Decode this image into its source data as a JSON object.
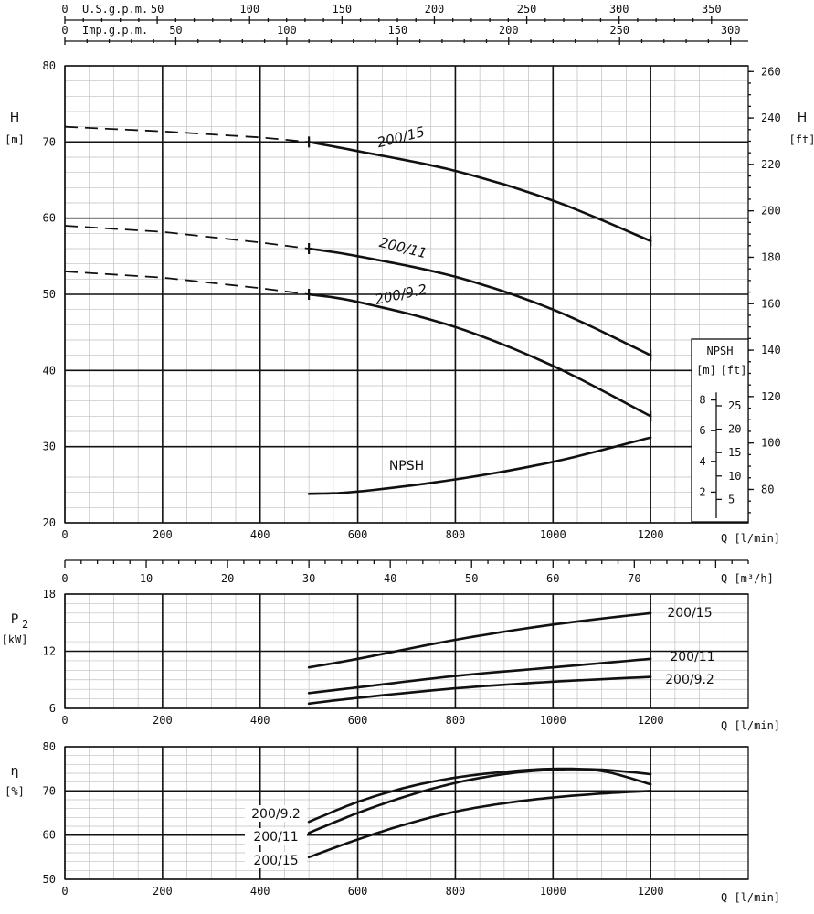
{
  "chart_data": [
    {
      "type": "line",
      "name": "head",
      "xlabel": "Q [l/min]",
      "ylabel_left": "H",
      "ylabel_left_unit": "[m]",
      "ylabel_right": "H",
      "ylabel_right_unit": "[ft]",
      "xlim": [
        0,
        1400
      ],
      "ylim": [
        20,
        80
      ],
      "x_ticks": [
        0,
        200,
        400,
        600,
        800,
        1000,
        1200
      ],
      "y_ticks": [
        20,
        30,
        40,
        50,
        60,
        70,
        80
      ],
      "right_ticks_ft": [
        80,
        100,
        120,
        140,
        160,
        180,
        200,
        220,
        240,
        260
      ],
      "top_axes": [
        {
          "label": "U.S.g.p.m.",
          "first": "0",
          "ticks": [
            "50",
            "100",
            "150",
            "200",
            "250",
            "300",
            "350"
          ],
          "values": [
            50,
            100,
            150,
            200,
            250,
            300,
            350
          ],
          "l_per_min": 3.785
        },
        {
          "label": "Imp.g.p.m.",
          "first": "0",
          "ticks": [
            "50",
            "100",
            "150",
            "200",
            "250",
            "300"
          ],
          "values": [
            50,
            100,
            150,
            200,
            250,
            300
          ],
          "l_per_min": 4.546
        }
      ],
      "series": [
        {
          "name": "200/15",
          "dashed_x": [
            0,
            200,
            400,
            500
          ],
          "dashed_y": [
            72,
            71.4,
            70.6,
            70
          ],
          "x": [
            500,
            600,
            800,
            1000,
            1200
          ],
          "y": [
            70,
            68.8,
            66.2,
            62.3,
            57
          ]
        },
        {
          "name": "200/11",
          "dashed_x": [
            0,
            200,
            400,
            500
          ],
          "dashed_y": [
            59,
            58.2,
            56.8,
            56
          ],
          "x": [
            500,
            600,
            800,
            1000,
            1200
          ],
          "y": [
            56,
            55,
            52.3,
            48,
            42
          ]
        },
        {
          "name": "200/9.2",
          "dashed_x": [
            0,
            200,
            400,
            500
          ],
          "dashed_y": [
            53,
            52.2,
            50.8,
            50
          ],
          "x": [
            500,
            600,
            800,
            1000,
            1200
          ],
          "y": [
            50,
            49,
            45.7,
            40.6,
            34
          ]
        }
      ],
      "npsh": {
        "name": "NPSH",
        "x": [
          500,
          600,
          800,
          1000,
          1200
        ],
        "y": [
          23.8,
          24.1,
          25.7,
          28,
          31.2
        ],
        "box_title": "NPSH",
        "box_units": [
          "[m]",
          "[ft]"
        ],
        "m_ticks": [
          "8",
          "6",
          "4",
          "2"
        ],
        "m_values": [
          8,
          6,
          4,
          2
        ],
        "ft_ticks": [
          "25",
          "20",
          "15",
          "10",
          "5"
        ],
        "ft_values": [
          25,
          20,
          15,
          10,
          5
        ]
      },
      "m3h_axis": {
        "label": "Q [m³/h]",
        "ticks": [
          "0",
          "10",
          "20",
          "30",
          "40",
          "50",
          "60",
          "70"
        ],
        "values": [
          0,
          10,
          20,
          30,
          40,
          50,
          60,
          70
        ]
      }
    },
    {
      "type": "line",
      "name": "power",
      "ylabel": "P",
      "ylabel_sub": "2",
      "yunit": "[kW]",
      "xlabel": "Q [l/min]",
      "xlim": [
        0,
        1400
      ],
      "ylim": [
        6,
        18
      ],
      "x_ticks": [
        0,
        200,
        400,
        600,
        800,
        1000,
        1200
      ],
      "y_ticks": [
        6,
        12,
        18
      ],
      "series": [
        {
          "name": "200/15",
          "x": [
            500,
            600,
            800,
            1000,
            1200
          ],
          "y": [
            10.3,
            11.2,
            13.2,
            14.8,
            16
          ]
        },
        {
          "name": "200/11",
          "x": [
            500,
            600,
            800,
            1000,
            1200
          ],
          "y": [
            7.6,
            8.2,
            9.4,
            10.3,
            11.2
          ]
        },
        {
          "name": "200/9.2",
          "x": [
            500,
            600,
            800,
            1000,
            1200
          ],
          "y": [
            6.5,
            7.1,
            8.1,
            8.8,
            9.3
          ]
        }
      ]
    },
    {
      "type": "line",
      "name": "efficiency",
      "ylabel": "η",
      "yunit": "[%]",
      "xlabel": "Q [l/min]",
      "xlim": [
        0,
        1400
      ],
      "ylim": [
        50,
        80
      ],
      "x_ticks": [
        0,
        200,
        400,
        600,
        800,
        1000,
        1200
      ],
      "y_ticks": [
        50,
        60,
        70,
        80
      ],
      "series": [
        {
          "name": "200/9.2",
          "x": [
            500,
            600,
            700,
            800,
            900,
            1000,
            1100,
            1200
          ],
          "y": [
            63,
            67.5,
            70.8,
            73,
            74.3,
            75,
            74.5,
            71.5
          ]
        },
        {
          "name": "200/11",
          "x": [
            500,
            600,
            700,
            800,
            900,
            1000,
            1100,
            1200
          ],
          "y": [
            60.5,
            65,
            68.8,
            71.8,
            73.8,
            74.8,
            74.8,
            73.8
          ]
        },
        {
          "name": "200/15",
          "x": [
            500,
            600,
            700,
            800,
            900,
            1000,
            1100,
            1200
          ],
          "y": [
            55,
            59,
            62.5,
            65.3,
            67.2,
            68.5,
            69.4,
            70
          ]
        }
      ]
    }
  ]
}
